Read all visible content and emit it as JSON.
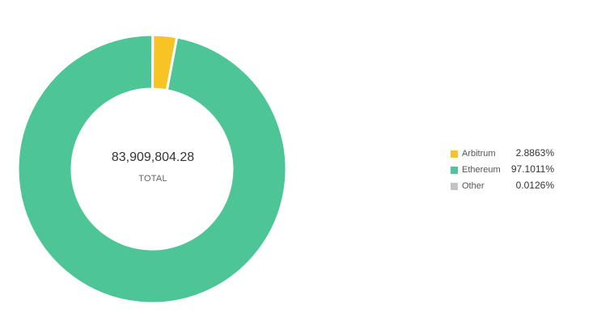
{
  "chart_data": {
    "type": "pie",
    "variant": "donut",
    "center": {
      "value": "83,909,804.28",
      "label": "TOTAL"
    },
    "series": [
      {
        "name": "Arbitrum",
        "value": 2.8863,
        "display": "2.8863%",
        "color": "#f7c325"
      },
      {
        "name": "Ethereum",
        "value": 97.1011,
        "display": "97.1011%",
        "color": "#4dc596"
      },
      {
        "name": "Other",
        "value": 0.0126,
        "display": "0.0126%",
        "color": "#c4c4c4"
      }
    ],
    "legend_position": "right"
  }
}
